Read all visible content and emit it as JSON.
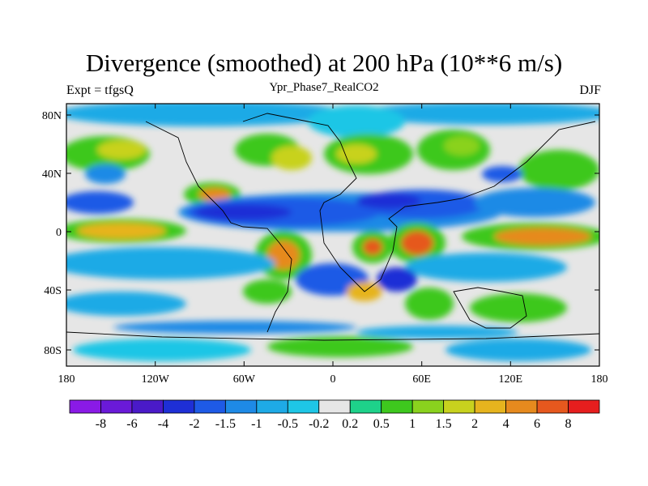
{
  "title": "Divergence (smoothed) at 200 hPa (10**6 m/s)",
  "left_label": "Expt = tfgsQ",
  "center_label": "Ypr_Phase7_RealCO2",
  "right_label": "DJF",
  "axes": {
    "lat_ticks": [
      "80N",
      "40N",
      "0",
      "40S",
      "80S"
    ],
    "lon_ticks": [
      "180",
      "120W",
      "60W",
      "0",
      "60E",
      "120E",
      "180"
    ]
  },
  "colorbar": {
    "colors": [
      "#8a1ae6",
      "#6a1ad8",
      "#4a1ac8",
      "#1e2fd6",
      "#1e5ae6",
      "#1e8ae6",
      "#1eaae6",
      "#1ec6e6",
      "#e6e6e6",
      "#1ed28a",
      "#3ec81e",
      "#8ad21e",
      "#c8d21e",
      "#e6b41e",
      "#e68a1e",
      "#e6581e",
      "#e61e1e"
    ],
    "labels": [
      "-8",
      "-6",
      "-4",
      "-2",
      "-1.5",
      "-1",
      "-0.5",
      "-0.2",
      "0.2",
      "0.5",
      "1",
      "1.5",
      "2",
      "4",
      "6",
      "8"
    ]
  }
}
